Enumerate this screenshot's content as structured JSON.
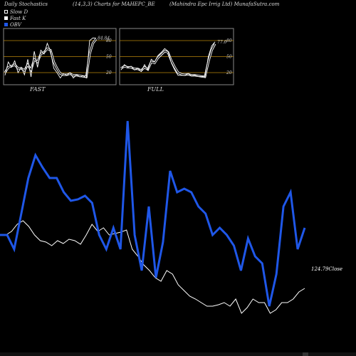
{
  "header": {
    "left": "Daily Stochastics",
    "center": "(14,3,3) Charts for MAHEPC_BE",
    "right": "(Mahindra Epc Irrig Ltd) MunafaSutra.com"
  },
  "legend": [
    {
      "label": "Slow D",
      "color": "#000000"
    },
    {
      "label": "Fast K",
      "color": "#ffffff"
    },
    {
      "label": "OBV",
      "color": "#1f57e8"
    }
  ],
  "colors": {
    "obv": "#1f57e8",
    "price": "#ffffff",
    "ref_line": "#b8860b",
    "frame": "#888888"
  },
  "chart_data": [
    {
      "type": "line",
      "title": "FAST",
      "ylim": [
        0,
        100
      ],
      "yticks": [
        20,
        50,
        80
      ],
      "last_value_label": "84.84",
      "series": [
        {
          "name": "Fast K",
          "values": [
            15,
            40,
            30,
            42,
            20,
            30,
            16,
            45,
            12,
            60,
            30,
            62,
            55,
            75,
            60,
            28,
            20,
            10,
            18,
            15,
            20,
            10,
            16,
            12,
            14,
            10,
            80,
            85,
            84.84
          ]
        },
        {
          "name": "Slow D",
          "values": [
            20,
            30,
            32,
            35,
            28,
            28,
            24,
            35,
            25,
            45,
            40,
            55,
            58,
            65,
            62,
            40,
            28,
            18,
            16,
            16,
            18,
            15,
            15,
            14,
            13,
            12,
            55,
            75,
            83
          ]
        }
      ]
    },
    {
      "type": "line",
      "title": "FULL",
      "ylim": [
        0,
        100
      ],
      "yticks": [
        20,
        50,
        80
      ],
      "last_value_label": "77.6",
      "series": [
        {
          "name": "Full K",
          "values": [
            25,
            35,
            30,
            32,
            25,
            28,
            22,
            35,
            25,
            45,
            40,
            52,
            58,
            65,
            60,
            38,
            25,
            15,
            15,
            15,
            18,
            14,
            15,
            13,
            13,
            12,
            50,
            70,
            77.6
          ]
        },
        {
          "name": "Full D",
          "values": [
            28,
            32,
            30,
            30,
            27,
            27,
            24,
            30,
            26,
            40,
            38,
            48,
            54,
            60,
            58,
            42,
            30,
            20,
            17,
            16,
            17,
            15,
            15,
            14,
            13,
            12,
            40,
            62,
            74
          ]
        }
      ]
    },
    {
      "type": "line",
      "title": "",
      "last_value_label": "124.79",
      "last_value_suffix": "Close",
      "series": [
        {
          "name": "OBV",
          "values": [
            330,
            330,
            350,
            300,
            250,
            218,
            235,
            250,
            250,
            270,
            282,
            280,
            275,
            285,
            330,
            350,
            320,
            350,
            170,
            330,
            380,
            290,
            390,
            340,
            240,
            270,
            265,
            270,
            290,
            300,
            330,
            320,
            330,
            345,
            380,
            335,
            360,
            370,
            430,
            385,
            290,
            270,
            350,
            320
          ]
        },
        {
          "name": "Close",
          "values": [
            330,
            330,
            325,
            315,
            310,
            318,
            330,
            338,
            340,
            345,
            338,
            342,
            336,
            338,
            343,
            330,
            315,
            325,
            320,
            330,
            328,
            326,
            323,
            350,
            360,
            372,
            380,
            390,
            395,
            380,
            385,
            400,
            408,
            416,
            420,
            425,
            430,
            430,
            428,
            425,
            430,
            420,
            440,
            432,
            420,
            425,
            425,
            440,
            435,
            425,
            425,
            420,
            410,
            405
          ]
        }
      ]
    }
  ]
}
